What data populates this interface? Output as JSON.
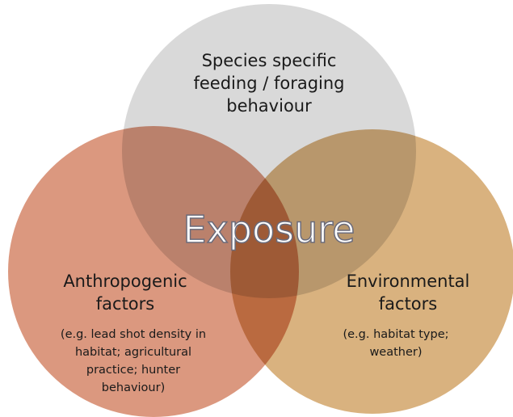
{
  "center_label": "Exposure",
  "circles": [
    {
      "title": [
        "Species specific",
        "feeding / foraging",
        "behaviour"
      ],
      "detail": []
    },
    {
      "title": [
        "Anthropogenic",
        "factors"
      ],
      "detail": [
        "(e.g. lead shot density in",
        "habitat; agricultural",
        "practice; hunter",
        "behaviour)"
      ]
    },
    {
      "title": [
        "Environmental",
        "factors"
      ],
      "detail": [
        "(e.g. habitat type;",
        "weather)"
      ]
    }
  ]
}
